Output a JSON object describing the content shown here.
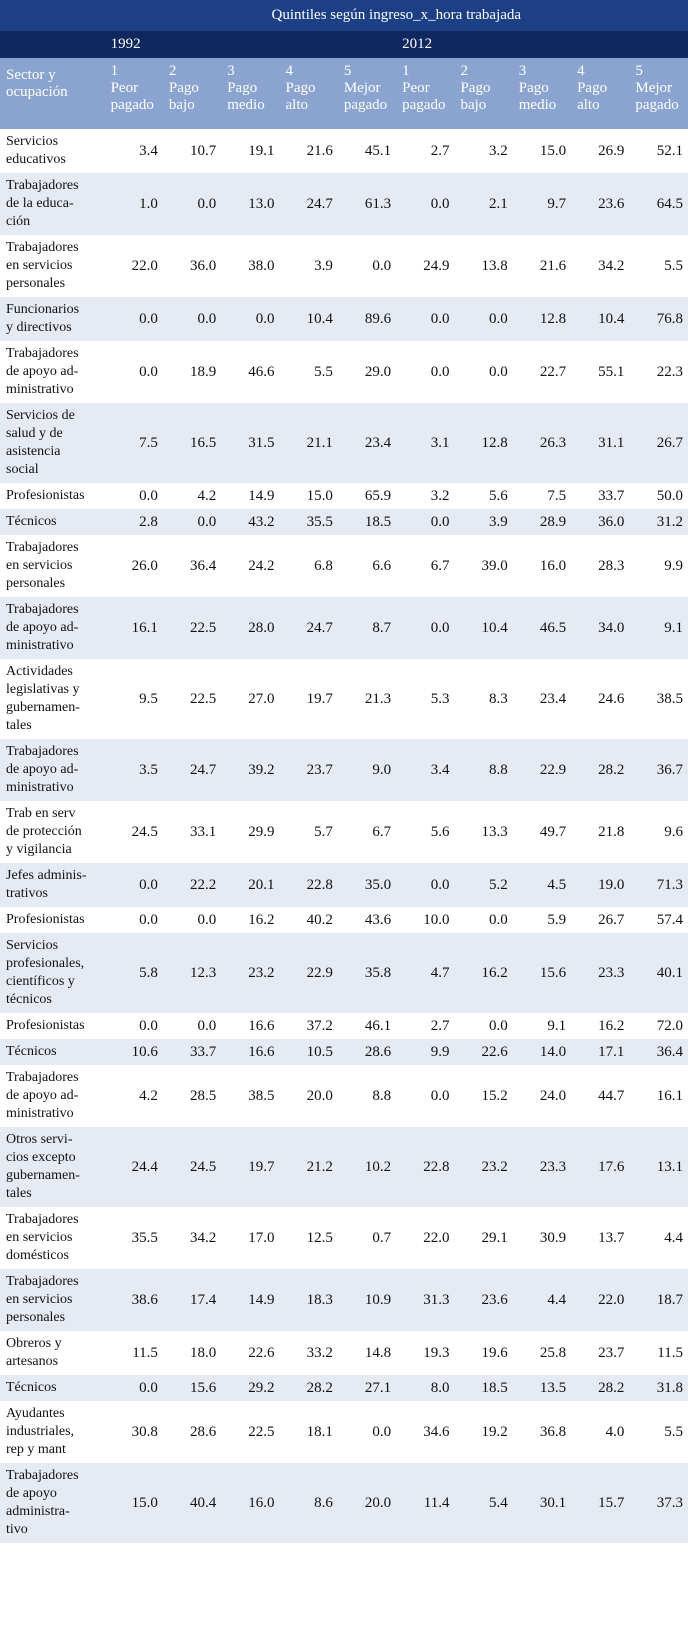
{
  "title": "Quintiles según ingreso_x_hora trabajada",
  "years": [
    "1992",
    "2012"
  ],
  "columns": {
    "sector": [
      "Sector y",
      "ocupación"
    ],
    "quintiles": [
      [
        "1",
        "Peor",
        "pagado"
      ],
      [
        "2",
        "Pago",
        "bajo"
      ],
      [
        "3",
        "Pago",
        "medio"
      ],
      [
        "4",
        "Pago",
        "alto"
      ],
      [
        "5",
        "Mejor",
        "pagado"
      ]
    ]
  },
  "rows": [
    {
      "label": [
        "Servicios",
        "educativos"
      ],
      "values": [
        "3.4",
        "10.7",
        "19.1",
        "21.6",
        "45.1",
        "2.7",
        "3.2",
        "15.0",
        "26.9",
        "52.1"
      ]
    },
    {
      "label": [
        "Trabajadores",
        "de la educa-",
        "ción"
      ],
      "values": [
        "1.0",
        "0.0",
        "13.0",
        "24.7",
        "61.3",
        "0.0",
        "2.1",
        "9.7",
        "23.6",
        "64.5"
      ]
    },
    {
      "label": [
        "Trabajadores",
        "en servicios",
        "personales"
      ],
      "values": [
        "22.0",
        "36.0",
        "38.0",
        "3.9",
        "0.0",
        "24.9",
        "13.8",
        "21.6",
        "34.2",
        "5.5"
      ]
    },
    {
      "label": [
        "Funcionarios",
        "y directivos"
      ],
      "values": [
        "0.0",
        "0.0",
        "0.0",
        "10.4",
        "89.6",
        "0.0",
        "0.0",
        "12.8",
        "10.4",
        "76.8"
      ]
    },
    {
      "label": [
        "Trabajadores",
        "de apoyo ad-",
        "ministrativo"
      ],
      "values": [
        "0.0",
        "18.9",
        "46.6",
        "5.5",
        "29.0",
        "0.0",
        "0.0",
        "22.7",
        "55.1",
        "22.3"
      ]
    },
    {
      "label": [
        "Servicios de",
        "salud y de",
        "asistencia",
        "social"
      ],
      "values": [
        "7.5",
        "16.5",
        "31.5",
        "21.1",
        "23.4",
        "3.1",
        "12.8",
        "26.3",
        "31.1",
        "26.7"
      ]
    },
    {
      "label": [
        "Profesionistas"
      ],
      "values": [
        "0.0",
        "4.2",
        "14.9",
        "15.0",
        "65.9",
        "3.2",
        "5.6",
        "7.5",
        "33.7",
        "50.0"
      ]
    },
    {
      "label": [
        "Técnicos"
      ],
      "values": [
        "2.8",
        "0.0",
        "43.2",
        "35.5",
        "18.5",
        "0.0",
        "3.9",
        "28.9",
        "36.0",
        "31.2"
      ]
    },
    {
      "label": [
        "Trabajadores",
        "en servicios",
        "personales"
      ],
      "values": [
        "26.0",
        "36.4",
        "24.2",
        "6.8",
        "6.6",
        "6.7",
        "39.0",
        "16.0",
        "28.3",
        "9.9"
      ]
    },
    {
      "label": [
        "Trabajadores",
        "de apoyo ad-",
        "ministrativo"
      ],
      "values": [
        "16.1",
        "22.5",
        "28.0",
        "24.7",
        "8.7",
        "0.0",
        "10.4",
        "46.5",
        "34.0",
        "9.1"
      ]
    },
    {
      "label": [
        "Actividades",
        "legislativas y",
        "gubernamen-",
        "tales"
      ],
      "values": [
        "9.5",
        "22.5",
        "27.0",
        "19.7",
        "21.3",
        "5.3",
        "8.3",
        "23.4",
        "24.6",
        "38.5"
      ]
    },
    {
      "label": [
        "Trabajadores",
        "de apoyo ad-",
        "ministrativo"
      ],
      "values": [
        "3.5",
        "24.7",
        "39.2",
        "23.7",
        "9.0",
        "3.4",
        "8.8",
        "22.9",
        "28.2",
        "36.7"
      ]
    },
    {
      "label": [
        "Trab en serv",
        "de protección",
        "y vigilancia"
      ],
      "values": [
        "24.5",
        "33.1",
        "29.9",
        "5.7",
        "6.7",
        "5.6",
        "13.3",
        "49.7",
        "21.8",
        "9.6"
      ]
    },
    {
      "label": [
        "Jefes adminis-",
        "trativos"
      ],
      "values": [
        "0.0",
        "22.2",
        "20.1",
        "22.8",
        "35.0",
        "0.0",
        "5.2",
        "4.5",
        "19.0",
        "71.3"
      ]
    },
    {
      "label": [
        "Profesionistas"
      ],
      "values": [
        "0.0",
        "0.0",
        "16.2",
        "40.2",
        "43.6",
        "10.0",
        "0.0",
        "5.9",
        "26.7",
        "57.4"
      ]
    },
    {
      "label": [
        "Servicios",
        "profesionales,",
        "científicos y",
        "técnicos"
      ],
      "values": [
        "5.8",
        "12.3",
        "23.2",
        "22.9",
        "35.8",
        "4.7",
        "16.2",
        "15.6",
        "23.3",
        "40.1"
      ]
    },
    {
      "label": [
        "Profesionistas"
      ],
      "values": [
        "0.0",
        "0.0",
        "16.6",
        "37.2",
        "46.1",
        "2.7",
        "0.0",
        "9.1",
        "16.2",
        "72.0"
      ]
    },
    {
      "label": [
        "Técnicos"
      ],
      "values": [
        "10.6",
        "33.7",
        "16.6",
        "10.5",
        "28.6",
        "9.9",
        "22.6",
        "14.0",
        "17.1",
        "36.4"
      ]
    },
    {
      "label": [
        "Trabajadores",
        "de apoyo ad-",
        "ministrativo"
      ],
      "values": [
        "4.2",
        "28.5",
        "38.5",
        "20.0",
        "8.8",
        "0.0",
        "15.2",
        "24.0",
        "44.7",
        "16.1"
      ]
    },
    {
      "label": [
        "Otros servi-",
        "cios excepto",
        "gubernamen-",
        "tales"
      ],
      "values": [
        "24.4",
        "24.5",
        "19.7",
        "21.2",
        "10.2",
        "22.8",
        "23.2",
        "23.3",
        "17.6",
        "13.1"
      ]
    },
    {
      "label": [
        "Trabajadores",
        "en servicios",
        "domésticos"
      ],
      "values": [
        "35.5",
        "34.2",
        "17.0",
        "12.5",
        "0.7",
        "22.0",
        "29.1",
        "30.9",
        "13.7",
        "4.4"
      ]
    },
    {
      "label": [
        "Trabajadores",
        "en servicios",
        "personales"
      ],
      "values": [
        "38.6",
        "17.4",
        "14.9",
        "18.3",
        "10.9",
        "31.3",
        "23.6",
        "4.4",
        "22.0",
        "18.7"
      ]
    },
    {
      "label": [
        "Obreros y",
        "artesanos"
      ],
      "values": [
        "11.5",
        "18.0",
        "22.6",
        "33.2",
        "14.8",
        "19.3",
        "19.6",
        "25.8",
        "23.7",
        "11.5"
      ]
    },
    {
      "label": [
        "Técnicos"
      ],
      "values": [
        "0.0",
        "15.6",
        "29.2",
        "28.2",
        "27.1",
        "8.0",
        "18.5",
        "13.5",
        "28.2",
        "31.8"
      ]
    },
    {
      "label": [
        "Ayudantes",
        "industriales,",
        "rep y mant"
      ],
      "values": [
        "30.8",
        "28.6",
        "22.5",
        "18.1",
        "0.0",
        "34.6",
        "19.2",
        "36.8",
        "4.0",
        "5.5"
      ]
    },
    {
      "label": [
        "Trabajadores",
        "de apoyo",
        "administra-",
        "tivo"
      ],
      "values": [
        "15.0",
        "40.4",
        "16.0",
        "8.6",
        "20.0",
        "11.4",
        "5.4",
        "30.1",
        "15.7",
        "37.3"
      ]
    }
  ]
}
